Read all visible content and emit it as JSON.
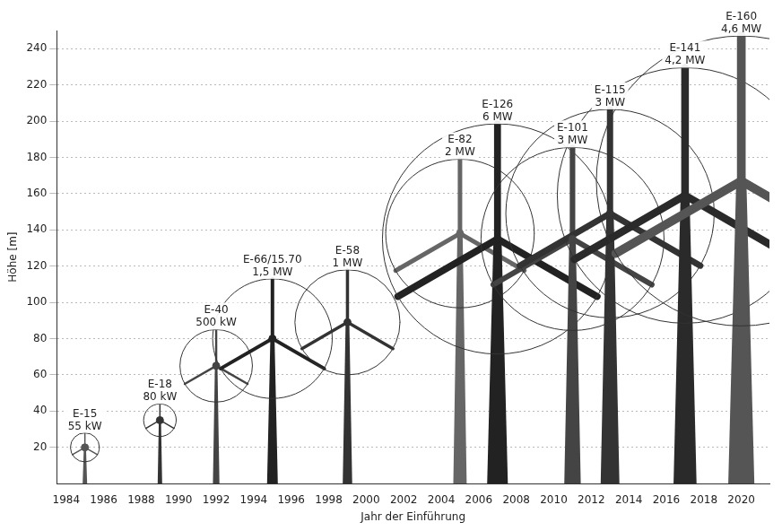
{
  "chart_data": {
    "type": "scatter",
    "x_label": "Jahr der Einführung",
    "y_label": "Höhe [m]",
    "names": [
      "E-15",
      "E-18",
      "E-40",
      "E-66/15.70",
      "E-58",
      "E-82",
      "E-126",
      "E-101",
      "E-115",
      "E-141",
      "E-160"
    ],
    "power_labels": [
      "55 kW",
      "80 kW",
      "500 kW",
      "1,5 MW",
      "1 MW",
      "2 MW",
      "6 MW",
      "3 MW",
      "3 MW",
      "4,2 MW",
      "4,6 MW"
    ],
    "x": [
      1985,
      1989,
      1992,
      1995,
      1999,
      2005,
      2007,
      2011,
      2013,
      2017,
      2020
    ],
    "values": [
      20,
      35,
      65,
      80,
      89,
      138,
      135,
      135,
      149,
      159,
      167
    ],
    "rotor_diameter": [
      16,
      18,
      40,
      66,
      58,
      82,
      127,
      101,
      115,
      141,
      160
    ],
    "colors": [
      "#555555",
      "#333333",
      "#444444",
      "#222222",
      "#333333",
      "#666666",
      "#222222",
      "#444444",
      "#333333",
      "#2a2a2a",
      "#555555"
    ],
    "xlim": [
      1983.5,
      2021.5
    ],
    "xticks": [
      1984,
      1986,
      1988,
      1990,
      1992,
      1994,
      1996,
      1998,
      2000,
      2002,
      2004,
      2006,
      2008,
      2010,
      2012,
      2014,
      2016,
      2018,
      2020
    ],
    "ylim": [
      0,
      250
    ],
    "yticks": [
      20,
      40,
      60,
      80,
      100,
      120,
      140,
      160,
      180,
      200,
      220,
      240
    ],
    "grid": true
  }
}
